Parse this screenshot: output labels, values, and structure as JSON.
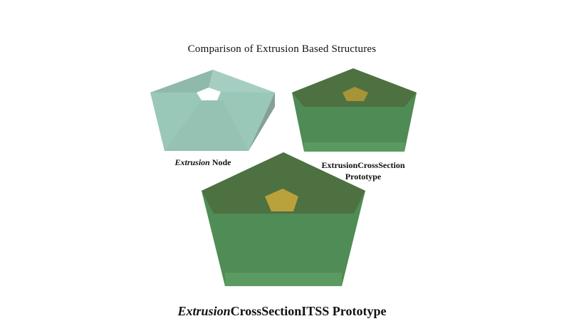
{
  "title": "Comparison of Extrusion Based Structures",
  "models": [
    {
      "label_italic": "Extrusion",
      "label_rest": " Node"
    },
    {
      "label_line1": "ExtrusionCrossSection",
      "label_line2": "Prototype"
    },
    {
      "label_italic": "Extrusion",
      "label_rest": "CrossSectionITSS Prototype"
    }
  ],
  "colors": {
    "node_face": "#93c4b4",
    "node_side": "#8aa89c",
    "prototype_top": "#4d6a3b",
    "prototype_face": "#4e8c55",
    "hole_fill": "#ffffff",
    "inner_pentagon": "#c9a23a"
  }
}
